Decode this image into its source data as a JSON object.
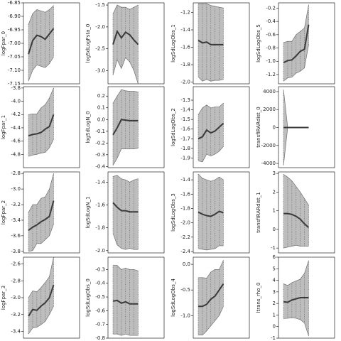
{
  "chart_data": [
    {
      "type": "line",
      "ylabel": "logFpar_0",
      "x": [
        0,
        1,
        2,
        3,
        4,
        5,
        6
      ],
      "xlim": [
        -1.2,
        12.2
      ],
      "ylim": [
        -7.15,
        -6.85
      ],
      "yticks": [
        -6.85,
        {
          "value": -6.9,
          "label": "-6.90"
        },
        -6.95,
        {
          "value": -7.0,
          "label": "-7.00"
        },
        -7.05,
        {
          "value": -7.1,
          "label": "-7.10"
        },
        -7.15
      ],
      "values": [
        -7.04,
        -6.99,
        -6.97,
        -6.975,
        -6.985,
        -6.965,
        -6.945
      ],
      "upper": [
        -6.93,
        -6.89,
        -6.875,
        -6.88,
        -6.885,
        -6.875,
        -6.86
      ],
      "lower": [
        -7.14,
        -7.1,
        -7.08,
        -7.085,
        -7.09,
        -7.075,
        -7.05
      ],
      "color": "#3a3a3a",
      "band_color": "#bdbdbd",
      "xgrid": true
    },
    {
      "type": "line",
      "ylabel": "logSdLogFsta_0",
      "x": [
        0,
        1,
        2,
        3,
        4,
        5,
        6
      ],
      "xlim": [
        -1.2,
        12.2
      ],
      "ylim": [
        -3.3,
        -1.45
      ],
      "yticks": [
        -1.5,
        {
          "value": -2,
          "label": "-2.0"
        },
        -2.5,
        {
          "value": -3,
          "label": "-3.0"
        }
      ],
      "values": [
        -2.4,
        -2.1,
        -2.25,
        -2.12,
        -2.18,
        -2.3,
        -2.4
      ],
      "upper": [
        -1.7,
        -1.5,
        -1.55,
        -1.55,
        -1.6,
        -1.55,
        -1.5
      ],
      "lower": [
        -3.1,
        -2.75,
        -2.95,
        -2.7,
        -2.8,
        -3.0,
        -3.3
      ],
      "color": "#3a3a3a",
      "band_color": "#bdbdbd",
      "xgrid": true
    },
    {
      "type": "line",
      "ylabel": "logSdLogObs_1",
      "x": [
        0,
        1,
        2,
        3,
        4,
        5,
        6
      ],
      "xlim": [
        -1.2,
        12.2
      ],
      "ylim": [
        -2.02,
        -1.09
      ],
      "yticks": [
        -1.2,
        -1.4,
        -1.6,
        -1.8,
        {
          "value": -2,
          "label": "-2.0"
        }
      ],
      "values": [
        -1.52,
        -1.55,
        -1.54,
        -1.57,
        -1.57,
        -1.57,
        -1.57
      ],
      "upper": [
        -1.1,
        -1.1,
        -1.1,
        -1.12,
        -1.13,
        -1.14,
        -1.15
      ],
      "lower": [
        -1.94,
        -1.99,
        -1.97,
        -1.99,
        -1.98,
        -1.98,
        -1.97
      ],
      "color": "#3a3a3a",
      "band_color": "#bdbdbd",
      "xgrid": true
    },
    {
      "type": "line",
      "ylabel": "logSdLogObs_5",
      "x": [
        0,
        1,
        2,
        3,
        4,
        5,
        6
      ],
      "xlim": [
        -1.2,
        12.2
      ],
      "ylim": [
        -1.34,
        -0.12
      ],
      "yticks": [
        -0.2,
        -0.4,
        -0.6,
        -0.8,
        {
          "value": -1,
          "label": "-1.0"
        },
        -1.2
      ],
      "values": [
        -1.02,
        -0.99,
        -0.98,
        -0.92,
        -0.85,
        -0.82,
        -0.45
      ],
      "upper": [
        -0.72,
        -0.7,
        -0.7,
        -0.6,
        -0.55,
        -0.5,
        -0.15
      ],
      "lower": [
        -1.3,
        -1.25,
        -1.24,
        -1.18,
        -1.15,
        -1.1,
        -0.75
      ],
      "color": "#3a3a3a",
      "band_color": "#bdbdbd",
      "xgrid": true
    },
    {
      "type": "line",
      "ylabel": "logFpar_1",
      "x": [
        0,
        1,
        2,
        3,
        4,
        5,
        6
      ],
      "xlim": [
        -1.2,
        12.2
      ],
      "ylim": [
        -5.0,
        -3.78
      ],
      "yticks": [
        -3.8,
        {
          "value": -4,
          "label": "-4.0"
        },
        -4.2,
        -4.4,
        -4.6,
        -4.8
      ],
      "values": [
        -4.52,
        -4.5,
        -4.49,
        -4.47,
        -4.42,
        -4.38,
        -4.2
      ],
      "upper": [
        -4.2,
        -4.19,
        -4.19,
        -4.1,
        -4.05,
        -3.95,
        -3.8
      ],
      "lower": [
        -4.83,
        -4.81,
        -4.8,
        -4.78,
        -4.77,
        -4.7,
        -4.57
      ],
      "color": "#3a3a3a",
      "band_color": "#bdbdbd",
      "xgrid": true
    },
    {
      "type": "line",
      "ylabel": "logSdLogN_0",
      "x": [
        0,
        1,
        2,
        3,
        4,
        5,
        6
      ],
      "xlim": [
        -1.2,
        12.2
      ],
      "ylim": [
        -0.41,
        0.28
      ],
      "yticks": [
        0.2,
        0.1,
        {
          "value": 0,
          "label": "0.0"
        },
        -0.1,
        -0.2,
        -0.3,
        -0.4
      ],
      "values": [
        -0.13,
        -0.07,
        0.0,
        -0.005,
        -0.01,
        -0.01,
        -0.01
      ],
      "upper": [
        0.14,
        0.2,
        0.255,
        0.245,
        0.24,
        0.24,
        0.235
      ],
      "lower": [
        -0.39,
        -0.33,
        -0.25,
        -0.25,
        -0.25,
        -0.25,
        -0.245
      ],
      "color": "#3a3a3a",
      "band_color": "#bdbdbd",
      "xgrid": true
    },
    {
      "type": "line",
      "ylabel": "logSdLogObs_2",
      "x": [
        0,
        1,
        2,
        3,
        4,
        5,
        6
      ],
      "xlim": [
        -1.2,
        12.2
      ],
      "ylim": [
        -2.0,
        -1.16
      ],
      "yticks": [
        -1.3,
        -1.4,
        -1.5,
        -1.6,
        -1.7,
        -1.8,
        -1.9
      ],
      "values": [
        -1.7,
        -1.68,
        -1.61,
        -1.64,
        -1.62,
        -1.58,
        -1.54
      ],
      "upper": [
        -1.45,
        -1.38,
        -1.35,
        -1.38,
        -1.37,
        -1.37,
        -1.33
      ],
      "lower": [
        -1.93,
        -1.94,
        -1.86,
        -1.88,
        -1.86,
        -1.83,
        -1.78
      ],
      "color": "#3a3a3a",
      "band_color": "#bdbdbd",
      "xgrid": true
    },
    {
      "type": "line",
      "ylabel": "transfIRARdist_0",
      "x": [
        0,
        1,
        2,
        3,
        4,
        5,
        6
      ],
      "xlim": [
        -1.2,
        12.2
      ],
      "ylim": [
        -4470,
        4550
      ],
      "yticks": [
        4000,
        2000,
        0,
        -2000,
        -4000
      ],
      "values": [
        0,
        0,
        0,
        0,
        0,
        0,
        0
      ],
      "upper": [
        4200,
        0,
        0,
        0,
        0,
        0,
        0
      ],
      "lower": [
        -4200,
        0,
        0,
        0,
        0,
        0,
        0
      ],
      "color": "#3a3a3a",
      "band_color": "#bdbdbd",
      "xgrid": true
    },
    {
      "type": "line",
      "ylabel": "logFpar_2",
      "x": [
        0,
        1,
        2,
        3,
        4,
        5,
        6
      ],
      "xlim": [
        -1.2,
        12.2
      ],
      "ylim": [
        -3.82,
        -2.78
      ],
      "yticks": [
        -2.8,
        {
          "value": -3,
          "label": "-3.0"
        },
        -3.2,
        -3.4,
        -3.6,
        -3.8
      ],
      "values": [
        -3.53,
        -3.49,
        -3.46,
        -3.42,
        -3.39,
        -3.35,
        -3.15
      ],
      "upper": [
        -3.3,
        -3.2,
        -3.2,
        -3.12,
        -3.1,
        -3.0,
        -2.8
      ],
      "lower": [
        -3.8,
        -3.79,
        -3.7,
        -3.7,
        -3.65,
        -3.6,
        -3.45
      ],
      "color": "#3a3a3a",
      "band_color": "#bdbdbd",
      "xgrid": true
    },
    {
      "type": "line",
      "ylabel": "logSdLogN_1",
      "x": [
        0,
        1,
        2,
        3,
        4,
        5,
        6
      ],
      "xlim": [
        -1.2,
        12.2
      ],
      "ylim": [
        -2.02,
        -1.31
      ],
      "yticks": [
        -1.4,
        -1.6,
        -1.8,
        {
          "value": -2,
          "label": "-2.0"
        }
      ],
      "values": [
        -1.58,
        -1.62,
        -1.65,
        -1.65,
        -1.66,
        -1.66,
        -1.66
      ],
      "upper": [
        -1.35,
        -1.34,
        -1.37,
        -1.38,
        -1.4,
        -1.38,
        -1.37
      ],
      "lower": [
        -1.85,
        -1.95,
        -1.98,
        -1.99,
        -1.98,
        -1.99,
        -1.99
      ],
      "color": "#3a3a3a",
      "band_color": "#bdbdbd",
      "xgrid": true
    },
    {
      "type": "line",
      "ylabel": "logSdLogObs_3",
      "x": [
        0,
        1,
        2,
        3,
        4,
        5,
        6
      ],
      "xlim": [
        -1.2,
        12.2
      ],
      "ylim": [
        -2.42,
        -1.29
      ],
      "yticks": [
        -1.4,
        -1.6,
        -1.8,
        {
          "value": -2,
          "label": "-2.0"
        },
        -2.2,
        -2.4
      ],
      "values": [
        -1.85,
        -1.88,
        -1.9,
        -1.91,
        -1.88,
        -1.84,
        -1.86
      ],
      "upper": [
        -1.32,
        -1.38,
        -1.4,
        -1.42,
        -1.4,
        -1.36,
        -1.4
      ],
      "lower": [
        -2.36,
        -2.37,
        -2.38,
        -2.37,
        -2.36,
        -2.32,
        -2.32
      ],
      "color": "#3a3a3a",
      "band_color": "#bdbdbd",
      "xgrid": true
    },
    {
      "type": "line",
      "ylabel": "transfIRARdist_1",
      "x": [
        0,
        1,
        2,
        3,
        4,
        5,
        6
      ],
      "xlim": [
        -1.2,
        12.2
      ],
      "ylim": [
        -1.26,
        3.08
      ],
      "yticks": [
        3,
        2,
        1,
        0,
        -1
      ],
      "values": [
        0.85,
        0.85,
        0.8,
        0.7,
        0.55,
        0.3,
        0.1
      ],
      "upper": [
        2.95,
        2.8,
        2.6,
        2.3,
        2.0,
        1.65,
        1.3
      ],
      "lower": [
        -1.0,
        -0.95,
        -0.9,
        -0.85,
        -0.9,
        -0.9,
        -0.9
      ],
      "color": "#3a3a3a",
      "band_color": "#bdbdbd",
      "xgrid": true
    },
    {
      "type": "line",
      "ylabel": "logFpar_3",
      "x": [
        0,
        1,
        2,
        3,
        4,
        5,
        6
      ],
      "xlim": [
        -1.2,
        12.2
      ],
      "ylim": [
        -3.48,
        -2.52
      ],
      "yticks": [
        -2.6,
        -2.8,
        {
          "value": -3,
          "label": "-3.0"
        },
        -3.2,
        -3.4
      ],
      "values": [
        -3.22,
        -3.14,
        -3.15,
        -3.1,
        -3.06,
        -3.0,
        -2.85
      ],
      "upper": [
        -3.0,
        -2.92,
        -2.93,
        -2.88,
        -2.82,
        -2.75,
        -2.52
      ],
      "lower": [
        -3.43,
        -3.36,
        -3.35,
        -3.32,
        -3.28,
        -3.2,
        -3.1
      ],
      "color": "#3a3a3a",
      "band_color": "#bdbdbd",
      "xgrid": true
    },
    {
      "type": "line",
      "ylabel": "logSdLogObs_0",
      "x": [
        0,
        1,
        2,
        3,
        4,
        5,
        6
      ],
      "xlim": [
        -1.2,
        12.2
      ],
      "ylim": [
        -0.8,
        -0.21
      ],
      "yticks": [
        -0.3,
        -0.4,
        -0.5,
        -0.6,
        -0.7,
        -0.8
      ],
      "values": [
        -0.53,
        -0.525,
        -0.545,
        -0.535,
        -0.55,
        -0.55,
        -0.55
      ],
      "upper": [
        -0.27,
        -0.27,
        -0.3,
        -0.29,
        -0.3,
        -0.3,
        -0.31
      ],
      "lower": [
        -0.77,
        -0.77,
        -0.78,
        -0.77,
        -0.78,
        -0.78,
        -0.78
      ],
      "color": "#3a3a3a",
      "band_color": "#bdbdbd",
      "xgrid": true
    },
    {
      "type": "line",
      "ylabel": "logSdLogObs_4",
      "x": [
        0,
        1,
        2,
        3,
        4,
        5,
        6
      ],
      "xlim": [
        -1.2,
        12.2
      ],
      "ylim": [
        -1.44,
        0.14
      ],
      "yticks": [
        {
          "value": 0,
          "label": "0.0"
        },
        -0.5,
        {
          "value": -1,
          "label": "-1.0"
        }
      ],
      "values": [
        -0.82,
        -0.82,
        -0.78,
        -0.68,
        -0.62,
        -0.5,
        -0.38
      ],
      "upper": [
        -0.26,
        -0.26,
        -0.27,
        -0.15,
        -0.1,
        -0.1,
        0.08
      ],
      "lower": [
        -1.38,
        -1.38,
        -1.3,
        -1.2,
        -1.1,
        -1.0,
        -0.82
      ],
      "color": "#3a3a3a",
      "band_color": "#bdbdbd",
      "xgrid": true
    },
    {
      "type": "line",
      "ylabel": "ltrans_rho_0",
      "x": [
        0,
        1,
        2,
        3,
        4,
        5,
        6
      ],
      "xlim": [
        -1.2,
        12.2
      ],
      "ylim": [
        -1,
        6
      ],
      "yticks": [
        6,
        5,
        4,
        3,
        2,
        1,
        0,
        -1
      ],
      "values": [
        2.15,
        2.1,
        2.3,
        2.4,
        2.5,
        2.5,
        2.5
      ],
      "upper": [
        3.7,
        3.55,
        3.8,
        3.95,
        4.1,
        4.6,
        5.7
      ],
      "lower": [
        0.7,
        0.72,
        0.75,
        0.72,
        0.6,
        0.3,
        -0.8
      ],
      "color": "#3a3a3a",
      "band_color": "#bdbdbd",
      "xgrid": true
    }
  ]
}
